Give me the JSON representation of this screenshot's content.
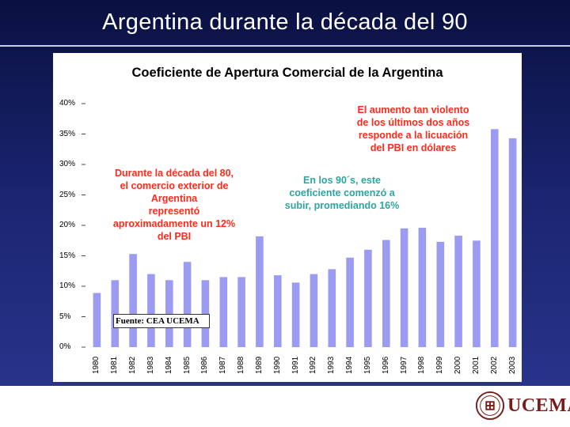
{
  "slide": {
    "title": "Argentina durante la década del 90"
  },
  "chart_data": {
    "type": "bar",
    "title": "Coeficiente de Apertura Comercial de la Argentina",
    "xlabel": "",
    "ylabel": "",
    "ylim": [
      0,
      40
    ],
    "yticks": [
      "0%",
      "5%",
      "10%",
      "15%",
      "20%",
      "25%",
      "30%",
      "35%",
      "40%"
    ],
    "grid": false,
    "categories": [
      "1980",
      "1981",
      "1982",
      "1983",
      "1984",
      "1985",
      "1986",
      "1987",
      "1988",
      "1989",
      "1990",
      "1991",
      "1992",
      "1993",
      "1994",
      "1995",
      "1996",
      "1997",
      "1998",
      "1999",
      "2000",
      "2001",
      "2002",
      "2003"
    ],
    "values": [
      8.9,
      11.0,
      15.3,
      12.0,
      11.0,
      14.0,
      11.0,
      11.5,
      11.5,
      18.2,
      11.8,
      10.6,
      12.0,
      12.8,
      14.7,
      16.0,
      17.6,
      19.5,
      19.6,
      17.3,
      18.3,
      17.5,
      35.8,
      34.3
    ],
    "bar_color": "#9b9bf2",
    "annotations": [
      {
        "id": "decade80",
        "lines": [
          "Durante la década del 80,",
          "el comercio exterior de",
          "Argentina",
          "representó",
          "aproximadamente un 12%",
          "del PBI"
        ],
        "color": "#ff2a1a"
      },
      {
        "id": "decade90",
        "lines": [
          "En los 90´s, este",
          "coeficiente comenzó a",
          "subir, promediando 16%"
        ],
        "color": "#2aa6a0"
      },
      {
        "id": "recent",
        "lines": [
          "El aumento tan violento",
          "de los últimos dos años",
          "responde a la licuación",
          "del PBI en dólares"
        ],
        "color": "#ff2a1a"
      }
    ],
    "source": "Fuente: CEA UCEMA"
  },
  "logo": {
    "text": "UCEMA",
    "icon": "university-seal-icon",
    "color": "#7a1b1b"
  }
}
